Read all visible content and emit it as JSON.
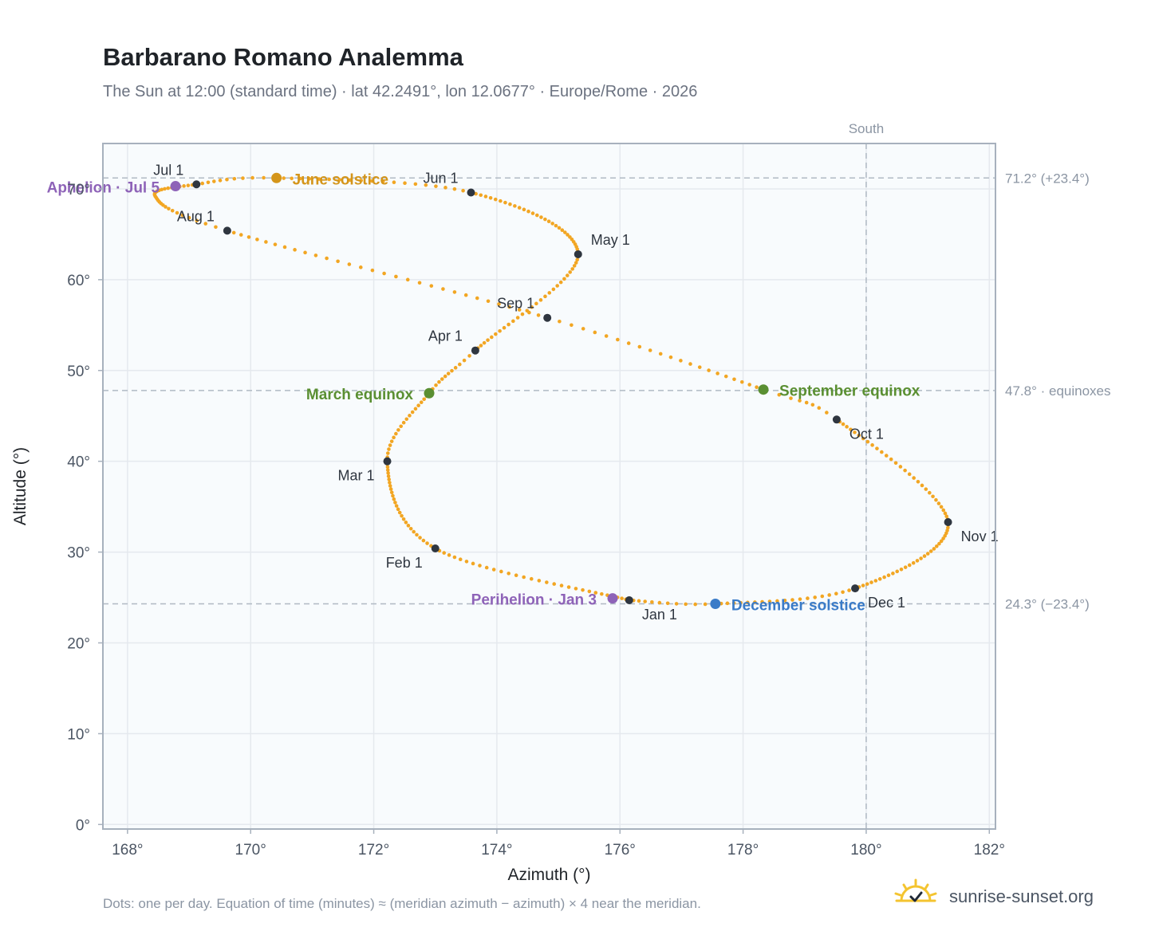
{
  "title": "Barbarano Romano Analemma",
  "subtitle": "The Sun at 12:00 (standard time) · lat 42.2491°, lon 12.0677° · Europe/Rome · 2026",
  "footnote": "Dots: one per day. Equation of time (minutes) ≈ (meridian azimuth − azimuth) × 4 near the meridian.",
  "brand": {
    "text": "sunrise-sunset.org",
    "icon": "sun-check-icon"
  },
  "colors": {
    "path": "#f2a623",
    "month": "#2f3640",
    "june_solstice": "#d4951a",
    "december_solstice": "#3a7bc8",
    "equinox": "#5a8f32",
    "perihelion_aphelion": "#8e63b8",
    "reference": "#b0bac4",
    "plot_bg": "#f8fbfd",
    "grid": "#e5e9ee"
  },
  "chart_data": {
    "type": "scatter",
    "xlabel": "Azimuth (°)",
    "ylabel": "Altitude (°)",
    "xlim": [
      167.6,
      182.1
    ],
    "ylim": [
      -0.5,
      75.0
    ],
    "x_ticks": [
      168,
      170,
      172,
      174,
      176,
      178,
      180,
      182
    ],
    "x_tick_labels": [
      "168°",
      "170°",
      "172°",
      "174°",
      "176°",
      "178°",
      "180°",
      "182°"
    ],
    "y_ticks": [
      0,
      10,
      20,
      30,
      40,
      50,
      60,
      70
    ],
    "y_tick_labels": [
      "0°",
      "10°",
      "20°",
      "30°",
      "40°",
      "50°",
      "60°",
      "70°"
    ],
    "grid": true,
    "south_line": {
      "azimuth": 180,
      "label": "South"
    },
    "reference_lines": [
      {
        "altitude": 71.2,
        "label": "71.2° (+23.4°)"
      },
      {
        "altitude": 47.8,
        "label": "47.8° · equinoxes"
      },
      {
        "altitude": 24.3,
        "label": "24.3° (−23.4°)"
      }
    ],
    "month_points": [
      {
        "label": "Jan 1",
        "azimuth": 176.15,
        "altitude": 24.7,
        "anchor": "start",
        "dx": 16,
        "dy": 24
      },
      {
        "label": "Feb 1",
        "azimuth": 173.0,
        "altitude": 30.4,
        "anchor": "end",
        "dx": -16,
        "dy": 24
      },
      {
        "label": "Mar 1",
        "azimuth": 172.22,
        "altitude": 40.0,
        "anchor": "end",
        "dx": -16,
        "dy": 24
      },
      {
        "label": "Apr 1",
        "azimuth": 173.65,
        "altitude": 52.2,
        "anchor": "end",
        "dx": -16,
        "dy": -12
      },
      {
        "label": "May 1",
        "azimuth": 175.32,
        "altitude": 62.8,
        "anchor": "start",
        "dx": 16,
        "dy": -12
      },
      {
        "label": "Jun 1",
        "azimuth": 173.58,
        "altitude": 69.6,
        "anchor": "end",
        "dx": -16,
        "dy": -12
      },
      {
        "label": "Jul 1",
        "azimuth": 169.12,
        "altitude": 70.5,
        "anchor": "end",
        "dx": -16,
        "dy": -12
      },
      {
        "label": "Aug 1",
        "azimuth": 169.62,
        "altitude": 65.4,
        "anchor": "end",
        "dx": -16,
        "dy": -12
      },
      {
        "label": "Sep 1",
        "azimuth": 174.82,
        "altitude": 55.8,
        "anchor": "end",
        "dx": -16,
        "dy": -12
      },
      {
        "label": "Oct 1",
        "azimuth": 179.52,
        "altitude": 44.6,
        "anchor": "start",
        "dx": 16,
        "dy": 24
      },
      {
        "label": "Nov 1",
        "azimuth": 181.33,
        "altitude": 33.3,
        "anchor": "start",
        "dx": 16,
        "dy": 24
      },
      {
        "label": "Dec 1",
        "azimuth": 179.82,
        "altitude": 26.0,
        "anchor": "start",
        "dx": 16,
        "dy": 24
      }
    ],
    "events": [
      {
        "label": "June solstice",
        "azimuth": 170.42,
        "altitude": 71.2,
        "color_key": "june_solstice",
        "anchor": "start",
        "dx": 20,
        "dy": 8
      },
      {
        "label": "December solstice",
        "azimuth": 177.55,
        "altitude": 24.3,
        "color_key": "december_solstice",
        "anchor": "start",
        "dx": 20,
        "dy": 8
      },
      {
        "label": "March equinox",
        "azimuth": 172.9,
        "altitude": 47.5,
        "color_key": "equinox",
        "anchor": "end",
        "dx": -20,
        "dy": 8
      },
      {
        "label": "September equinox",
        "azimuth": 178.33,
        "altitude": 47.9,
        "color_key": "equinox",
        "anchor": "start",
        "dx": 20,
        "dy": 8
      },
      {
        "label": "Perihelion · Jan 3",
        "azimuth": 175.88,
        "altitude": 24.9,
        "color_key": "perihelion_aphelion",
        "anchor": "end",
        "dx": -20,
        "dy": 8
      },
      {
        "label": "Aphelion · Jul 5",
        "azimuth": 168.78,
        "altitude": 70.3,
        "color_key": "perihelion_aphelion",
        "anchor": "end",
        "dx": -20,
        "dy": 8
      }
    ],
    "daily_path_knots": [
      {
        "day": 1,
        "azimuth": 176.15,
        "altitude": 24.7
      },
      {
        "day": 32,
        "azimuth": 173.0,
        "altitude": 30.4
      },
      {
        "day": 60,
        "azimuth": 172.22,
        "altitude": 40.0
      },
      {
        "day": 79,
        "azimuth": 172.9,
        "altitude": 47.5
      },
      {
        "day": 91,
        "azimuth": 173.65,
        "altitude": 52.2
      },
      {
        "day": 121,
        "azimuth": 175.32,
        "altitude": 62.8
      },
      {
        "day": 152,
        "azimuth": 173.58,
        "altitude": 69.6
      },
      {
        "day": 172,
        "azimuth": 170.42,
        "altitude": 71.2
      },
      {
        "day": 182,
        "azimuth": 169.12,
        "altitude": 70.5
      },
      {
        "day": 197,
        "azimuth": 168.45,
        "altitude": 69.2
      },
      {
        "day": 213,
        "azimuth": 169.62,
        "altitude": 65.4
      },
      {
        "day": 244,
        "azimuth": 174.82,
        "altitude": 55.8
      },
      {
        "day": 266,
        "azimuth": 178.33,
        "altitude": 47.9
      },
      {
        "day": 274,
        "azimuth": 179.52,
        "altitude": 44.6
      },
      {
        "day": 305,
        "azimuth": 181.33,
        "altitude": 33.3
      },
      {
        "day": 335,
        "azimuth": 179.82,
        "altitude": 26.0
      },
      {
        "day": 355,
        "azimuth": 177.55,
        "altitude": 24.3
      },
      {
        "day": 366,
        "azimuth": 176.15,
        "altitude": 24.7
      }
    ]
  }
}
